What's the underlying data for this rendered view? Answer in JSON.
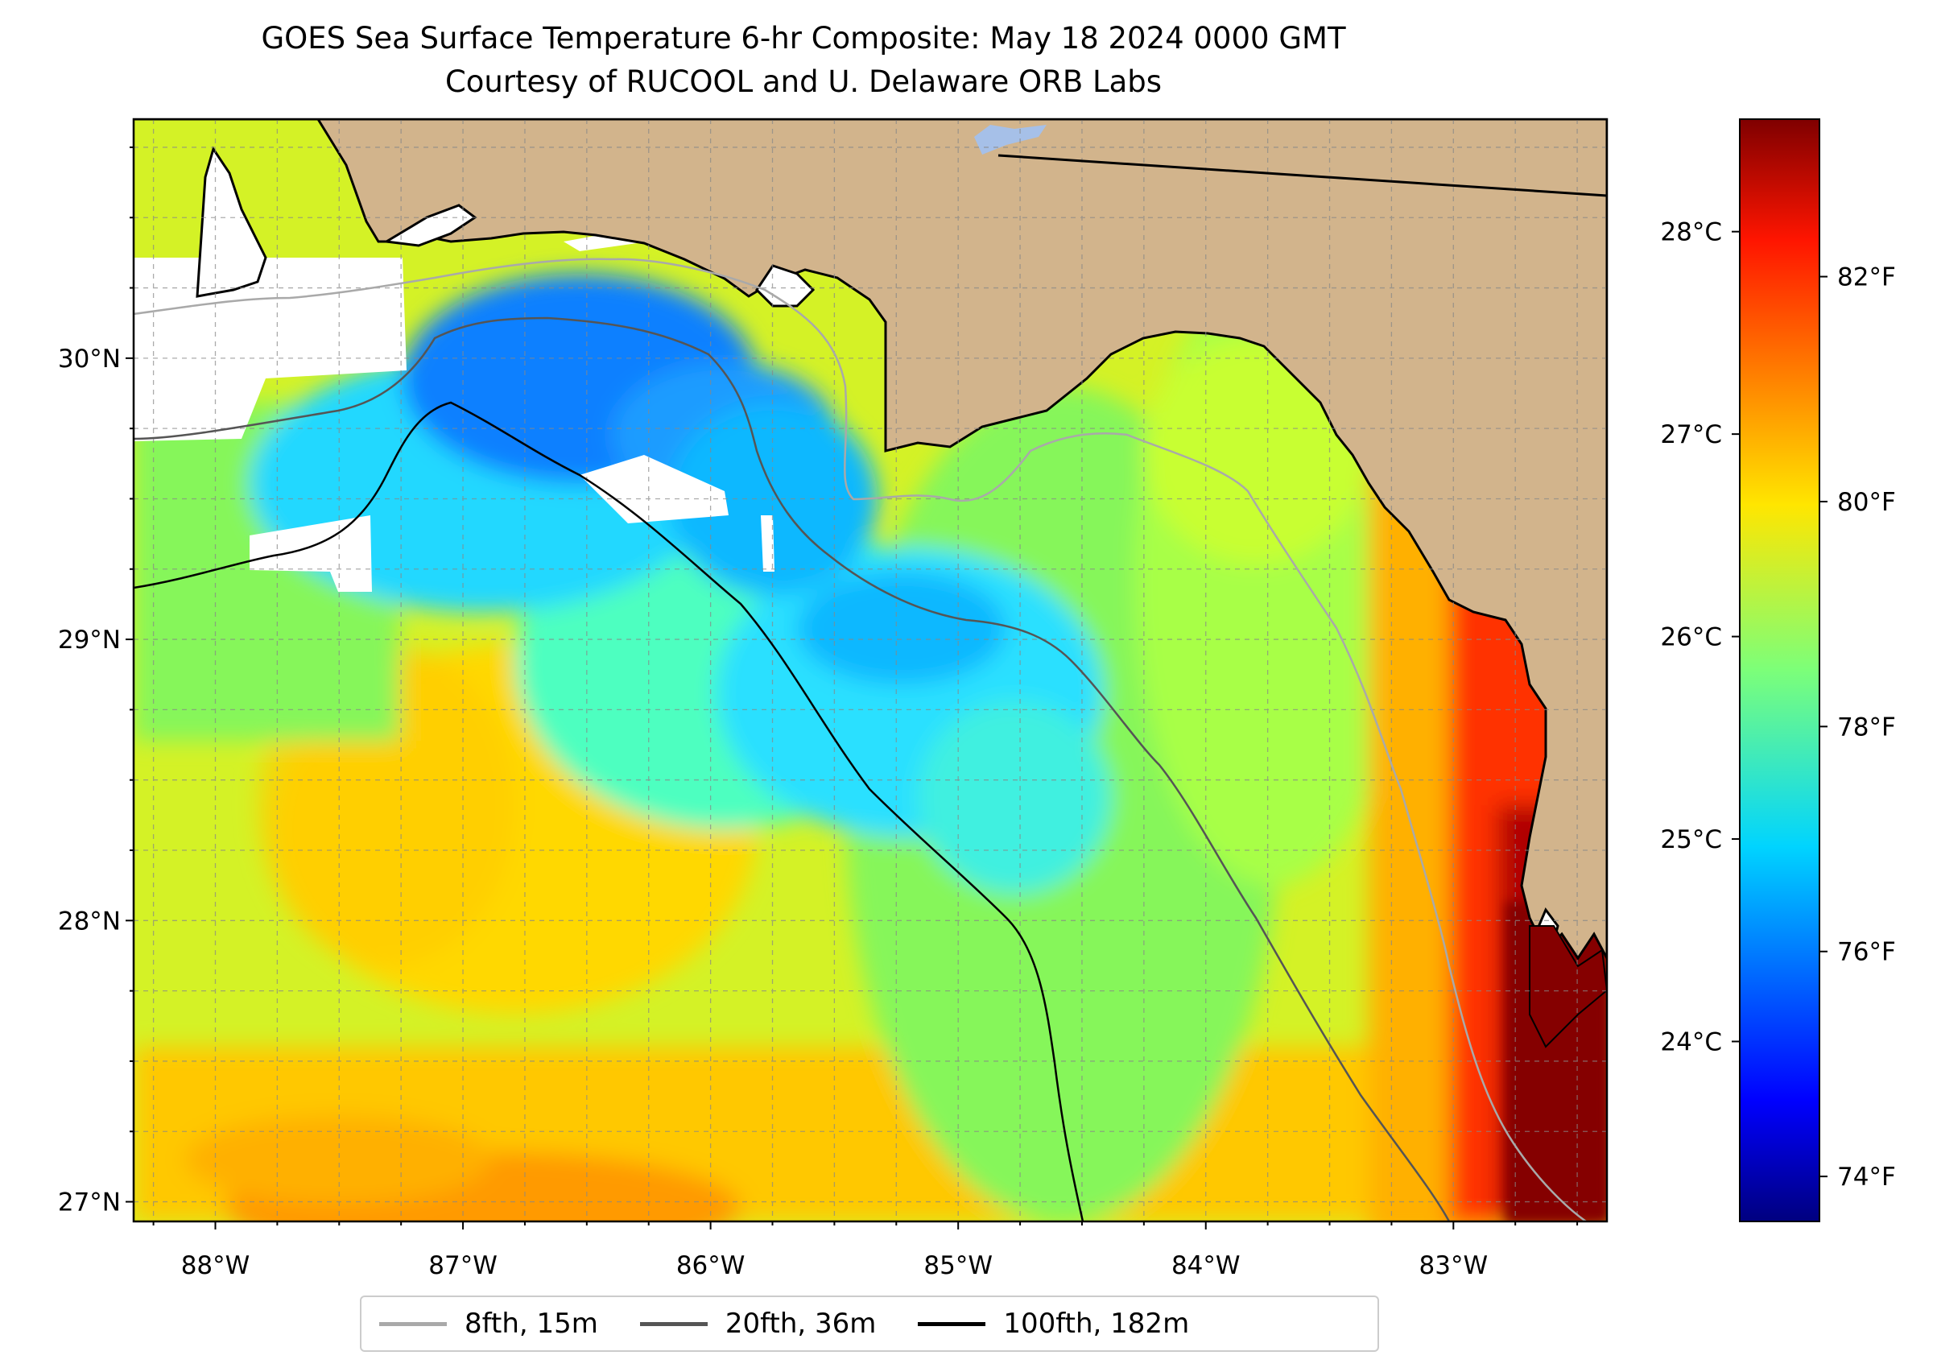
{
  "title": "GOES Sea Surface Temperature 6-hr Composite: May 18 2024 0000 GMT",
  "subtitle": "Courtesy of RUCOOL and U. Delaware ORB Labs",
  "map": {
    "lon_range": [
      -88.33,
      -82.38
    ],
    "lat_range": [
      26.93,
      30.85
    ],
    "lon_ticks": [
      "88°W",
      "87°W",
      "86°W",
      "85°W",
      "84°W",
      "83°W"
    ],
    "lat_ticks": [
      "27°N",
      "28°N",
      "29°N",
      "30°N"
    ],
    "gridlines": true,
    "colors": {
      "land": "#d2b48c",
      "no_data": "#ffffff",
      "coastline": "#000000",
      "lake": "#a6c0e8"
    }
  },
  "legend": {
    "placement": "bottom-center",
    "items": [
      {
        "label": "8fth, 15m",
        "color": "#a9a9a9"
      },
      {
        "label": "20fth, 36m",
        "color": "#555555"
      },
      {
        "label": "100fth, 182m",
        "color": "#000000"
      }
    ]
  },
  "colorbar": {
    "colormap": "jet",
    "range_f": [
      73.6,
      83.4
    ],
    "celsius_ticks": [
      "28°C",
      "27°C",
      "26°C",
      "25°C",
      "24°C"
    ],
    "fahrenheit_ticks": [
      "82°F",
      "80°F",
      "78°F",
      "76°F",
      "74°F"
    ]
  }
}
